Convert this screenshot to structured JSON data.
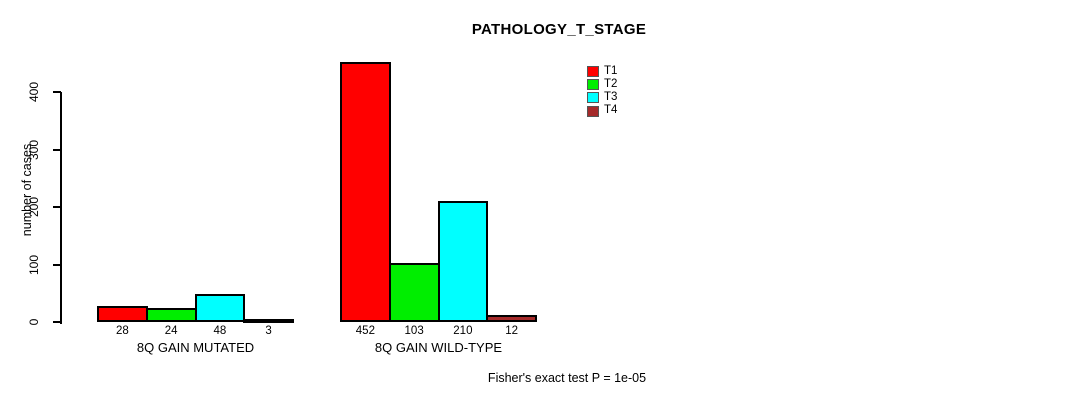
{
  "chart_data": {
    "type": "bar",
    "title": "PATHOLOGY_T_STAGE",
    "ylabel": "number of cases",
    "xlabel": "",
    "yticks": [
      0,
      100,
      200,
      300,
      400
    ],
    "ylim": [
      0,
      460
    ],
    "grid": false,
    "legend_position": "top-right",
    "categories": [
      "8Q GAIN MUTATED",
      "8Q GAIN WILD-TYPE"
    ],
    "series": [
      {
        "name": "T1",
        "color": "#ff0000",
        "values": [
          28,
          452
        ]
      },
      {
        "name": "T2",
        "color": "#00ee00",
        "values": [
          24,
          103
        ]
      },
      {
        "name": "T3",
        "color": "#00ffff",
        "values": [
          48,
          210
        ]
      },
      {
        "name": "T4",
        "color": "#a52a2a",
        "values": [
          3,
          12
        ]
      }
    ],
    "bar_value_labels": [
      [
        "28",
        "24",
        "48",
        "3"
      ],
      [
        "452",
        "103",
        "210",
        "12"
      ]
    ],
    "annotation": "Fisher's exact test P = 1e-05"
  }
}
